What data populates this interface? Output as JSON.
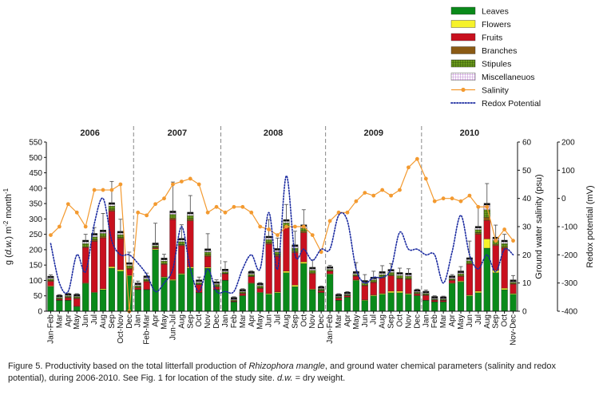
{
  "chart_data": {
    "type": "bar",
    "stacked": true,
    "years": [
      "2006",
      "2007",
      "2008",
      "2009",
      "2010"
    ],
    "categories": [
      "Jan-Feb",
      "Mar",
      "Apr",
      "May",
      "Jun",
      "Jul",
      "Aug",
      "Sep",
      "Oct-Nov",
      "Dec",
      "Jan",
      "Feb-Mar",
      "Apr",
      "May",
      "Jun-Jul",
      "Aug",
      "Sep",
      "Oct",
      "Nov",
      "Dec",
      "Jan",
      "Feb",
      "Mar",
      "Apr",
      "May",
      "Jun",
      "Jul",
      "Aug",
      "Sep",
      "Oct",
      "Nov",
      "Dec",
      "Jan-Feb",
      "Mar",
      "Apr",
      "May",
      "Jun",
      "Jul",
      "Aug",
      "Sep",
      "Oct",
      "Nov",
      "Dec",
      "Jan",
      "Feb",
      "Mar",
      "Apr",
      "May",
      "Jun",
      "Jul",
      "Aug",
      "Sep",
      "Oct",
      "Nov-Dec"
    ],
    "year_starts": [
      0,
      10,
      20,
      32,
      43
    ],
    "series": [
      {
        "name": "Leaves",
        "color": "#0a8a1a",
        "values": [
          80,
          35,
          35,
          15,
          90,
          60,
          70,
          140,
          130,
          115,
          70,
          70,
          200,
          110,
          100,
          120,
          140,
          60,
          140,
          70,
          100,
          30,
          50,
          90,
          60,
          55,
          60,
          125,
          80,
          155,
          70,
          60,
          120,
          35,
          45,
          100,
          35,
          50,
          55,
          60,
          60,
          55,
          50,
          35,
          30,
          30,
          90,
          95,
          50,
          60,
          205,
          125,
          70,
          55
        ]
      },
      {
        "name": "Flowers",
        "color": "#f6f22a",
        "values": [
          2,
          1,
          1,
          1,
          2,
          2,
          3,
          5,
          5,
          2,
          1,
          1,
          3,
          2,
          3,
          3,
          4,
          1,
          3,
          1,
          1,
          1,
          1,
          2,
          2,
          3,
          3,
          5,
          5,
          5,
          2,
          1,
          2,
          1,
          1,
          2,
          2,
          3,
          3,
          5,
          5,
          3,
          1,
          1,
          1,
          1,
          2,
          3,
          3,
          5,
          30,
          8,
          5,
          3
        ]
      },
      {
        "name": "Fruits",
        "color": "#c8101e",
        "values": [
          15,
          3,
          8,
          25,
          115,
          165,
          165,
          180,
          100,
          20,
          5,
          25,
          3,
          40,
          195,
          90,
          150,
          25,
          35,
          8,
          20,
          2,
          6,
          20,
          12,
          160,
          115,
          140,
          105,
          95,
          50,
          5,
          8,
          6,
          4,
          12,
          45,
          40,
          50,
          50,
          40,
          45,
          5,
          15,
          5,
          4,
          8,
          15,
          100,
          185,
          60,
          80,
          130,
          30
        ]
      },
      {
        "name": "Branches",
        "color": "#8a5a14",
        "values": [
          3,
          2,
          2,
          2,
          3,
          5,
          5,
          5,
          4,
          3,
          2,
          3,
          2,
          3,
          5,
          3,
          5,
          2,
          4,
          2,
          2,
          1,
          2,
          2,
          2,
          5,
          5,
          5,
          5,
          5,
          3,
          2,
          2,
          2,
          1,
          2,
          3,
          3,
          3,
          3,
          3,
          3,
          2,
          2,
          1,
          1,
          2,
          3,
          3,
          5,
          10,
          5,
          5,
          2
        ]
      },
      {
        "name": "Stipules",
        "color": "#4a7a10",
        "values": [
          5,
          3,
          3,
          4,
          10,
          10,
          10,
          12,
          10,
          8,
          5,
          6,
          5,
          8,
          12,
          10,
          12,
          5,
          10,
          6,
          5,
          3,
          4,
          6,
          6,
          10,
          10,
          12,
          10,
          10,
          8,
          4,
          4,
          3,
          3,
          4,
          6,
          6,
          8,
          8,
          8,
          8,
          4,
          4,
          3,
          3,
          4,
          6,
          8,
          10,
          25,
          12,
          10,
          4
        ]
      },
      {
        "name": "Miscellaneuos",
        "color": "#c49ad6",
        "values": [
          3,
          2,
          2,
          2,
          5,
          5,
          5,
          5,
          5,
          4,
          3,
          4,
          3,
          4,
          5,
          5,
          5,
          3,
          5,
          3,
          3,
          2,
          2,
          3,
          3,
          5,
          5,
          5,
          5,
          5,
          4,
          2,
          3,
          2,
          2,
          3,
          3,
          3,
          4,
          4,
          4,
          4,
          2,
          2,
          2,
          2,
          3,
          3,
          4,
          5,
          15,
          5,
          5,
          2
        ]
      }
    ],
    "error_bars": [
      10,
      8,
      8,
      8,
      25,
      25,
      60,
      75,
      45,
      40,
      12,
      15,
      70,
      18,
      100,
      50,
      60,
      15,
      55,
      12,
      30,
      8,
      8,
      8,
      8,
      60,
      40,
      55,
      50,
      55,
      30,
      8,
      10,
      8,
      8,
      35,
      25,
      25,
      25,
      25,
      20,
      20,
      8,
      10,
      8,
      8,
      10,
      20,
      60,
      70,
      70,
      45,
      25,
      20
    ],
    "salinity": {
      "name": "Salinity",
      "color": "#f39a30",
      "unit": "psu",
      "values": [
        27,
        30,
        38,
        35,
        30,
        43,
        43,
        43,
        45,
        0,
        35,
        34,
        38,
        40,
        45,
        46,
        47,
        45,
        35,
        37,
        35,
        37,
        37,
        35,
        30,
        29,
        27,
        30,
        30,
        30,
        27,
        21,
        32,
        35,
        35,
        39,
        42,
        41,
        43,
        41,
        43,
        51,
        54,
        47,
        39,
        40,
        40,
        39,
        41,
        37,
        37,
        25,
        29,
        25
      ]
    },
    "redox": {
      "name": "Redox Potential",
      "color": "#1a2aa0",
      "unit": "mV",
      "values": [
        -160,
        -300,
        -330,
        -200,
        -260,
        -90,
        0,
        -150,
        -200,
        -200,
        -230,
        -270,
        -330,
        -300,
        -250,
        -100,
        -250,
        -330,
        -250,
        -330,
        -330,
        -330,
        -250,
        -200,
        -250,
        -50,
        -250,
        80,
        -200,
        -180,
        -220,
        -180,
        -180,
        -60,
        -80,
        -250,
        -300,
        -280,
        -280,
        -250,
        -120,
        -180,
        -180,
        -200,
        -200,
        -300,
        -190,
        -60,
        -200,
        -250,
        -200,
        -260,
        -180,
        -200
      ]
    },
    "y_left": {
      "label_parts": [
        "g (",
        "d.w.",
        ") m",
        "-2",
        " month",
        "-1"
      ],
      "min": 0,
      "max": 550,
      "step": 50
    },
    "y_right1": {
      "label": "Ground water salinity (psu)",
      "min": 0,
      "max": 60,
      "step": 10
    },
    "y_right2": {
      "label": "Redox potential (mV)",
      "min": -400,
      "max": 200,
      "step": 100
    },
    "legend": [
      {
        "label": "Leaves",
        "kind": "box",
        "color": "#0a8a1a"
      },
      {
        "label": "Flowers",
        "kind": "box",
        "color": "#f6f22a"
      },
      {
        "label": "Fruits",
        "kind": "box",
        "color": "#c8101e"
      },
      {
        "label": "Branches",
        "kind": "box",
        "color": "#8a5a14"
      },
      {
        "label": "Stipules",
        "kind": "grid",
        "color": "#4a7a10"
      },
      {
        "label": "Miscellaneuos",
        "kind": "grid",
        "color": "#c49ad6"
      },
      {
        "label": "Salinity",
        "kind": "line-dot",
        "color": "#f39a30"
      },
      {
        "label": "Redox Potential",
        "kind": "dotted",
        "color": "#1a2aa0"
      }
    ]
  },
  "caption": {
    "prefix": "Figure 5. Productivity based on the total litterfall production of ",
    "species": "Rhizophora mangle",
    "middle": ", and ground water chemical parameters (salinity and redox potential), during 2006-2010. See Fig. 1 for location of the study site. ",
    "abbr": "d.w.",
    "suffix": " = dry weight."
  }
}
